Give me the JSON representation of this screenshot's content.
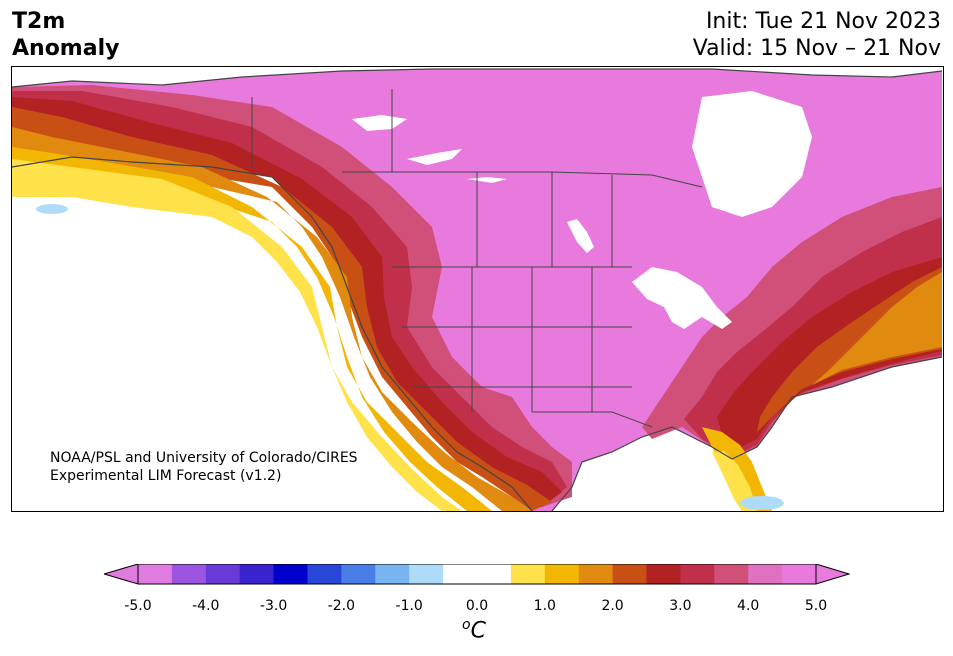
{
  "title": {
    "line1": "T2m",
    "line2": "Anomaly"
  },
  "dates": {
    "init": "Init: Tue 21 Nov 2023",
    "valid": "Valid: 15 Nov – 21 Nov"
  },
  "credit": {
    "line1": "NOAA/PSL and University of Colorado/CIRES",
    "line2": "Experimental LIM Forecast (v1.2)"
  },
  "colorbar": {
    "units_base": "C",
    "units_super": "o",
    "ticks": [
      "-5.0",
      "-4.0",
      "-3.0",
      "-2.0",
      "-1.0",
      "0.0",
      "1.0",
      "2.0",
      "3.0",
      "4.0",
      "5.0"
    ],
    "colors": [
      "#e07be0",
      "#9b55e0",
      "#6a3ad8",
      "#3a22cf",
      "#0000cc",
      "#2846d8",
      "#4a7de8",
      "#78b4f0",
      "#aedcf8",
      "#ffffff",
      "#ffffff",
      "#ffe14a",
      "#f2b705",
      "#e08a10",
      "#c85014",
      "#b22222",
      "#c0304a",
      "#d0507a",
      "#e070c0",
      "#e87ade"
    ],
    "over_color": "#e87ade",
    "under_color": "#e07be0"
  },
  "map": {
    "ocean_color": "#ffffff",
    "warm_colors": {
      "w1": "#ffe14a",
      "w2": "#f2b705",
      "w3": "#e08a10",
      "w4": "#c85014",
      "w5": "#b22222",
      "w6": "#c0304a",
      "w7": "#d0507a",
      "w8": "#e87ade"
    },
    "cool_colors": {
      "c1": "#aedcf8"
    }
  }
}
